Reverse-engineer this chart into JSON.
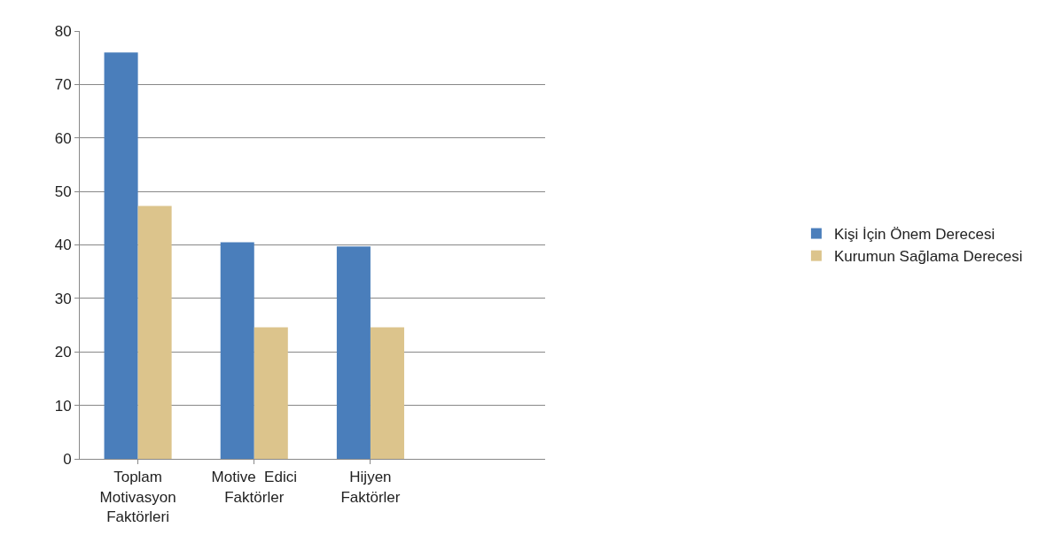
{
  "chart_data": {
    "type": "bar",
    "categories": [
      "Toplam\nMotivasyon\nFaktörleri",
      "Motive  Edici\nFaktörler",
      "Hijyen\nFaktörler",
      null
    ],
    "series": [
      {
        "name": "Kişi İçin Önem Derecesi",
        "color": "#4a7ebb",
        "values": [
          76,
          40.5,
          39.7,
          null
        ]
      },
      {
        "name": "Kurumun Sağlama Derecesi",
        "color": "#dcc48c",
        "values": [
          47.3,
          24.6,
          24.6,
          null
        ]
      }
    ],
    "ylim": [
      0,
      80
    ],
    "yticks": [
      0,
      10,
      20,
      30,
      40,
      50,
      60,
      70,
      80
    ],
    "grid": "y",
    "legend": "right"
  }
}
